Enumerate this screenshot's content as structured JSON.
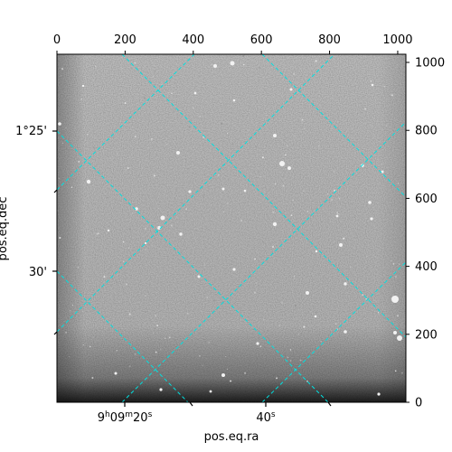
{
  "chart_data": {
    "type": "image",
    "xlabel": "pos.eq.ra",
    "ylabel": "pos.eq.dec",
    "pixel_axes": {
      "top": {
        "ticks": [
          0,
          200,
          400,
          600,
          800,
          1000
        ],
        "labels": [
          "0",
          "200",
          "400",
          "600",
          "800",
          "1000"
        ],
        "range": [
          0,
          1024
        ]
      },
      "right": {
        "ticks": [
          0,
          200,
          400,
          600,
          800,
          1000
        ],
        "labels": [
          "0",
          "200",
          "400",
          "600",
          "800",
          "1000"
        ],
        "range": [
          0,
          1024
        ]
      }
    },
    "world_axes": {
      "ra_tick_labels": [
        {
          "h": "9",
          "m": "09",
          "s": "20"
        },
        {
          "h": "",
          "m": "",
          "s": "40"
        }
      ],
      "dec_tick_labels": [
        "1°25'",
        "30'"
      ]
    },
    "grid": true,
    "grid_color": "#00e0e0",
    "colormap": "gray"
  }
}
